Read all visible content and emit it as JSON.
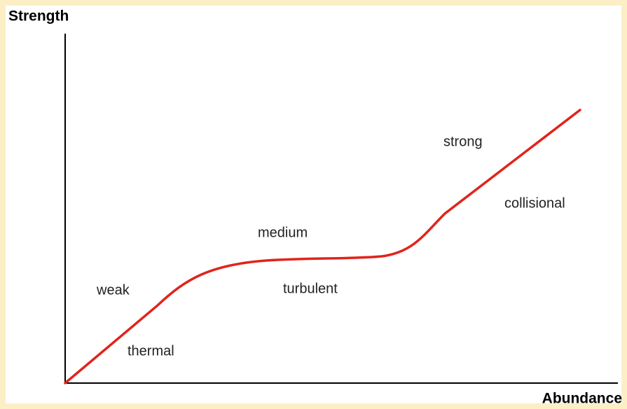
{
  "axes": {
    "y_label": "Strength",
    "x_label": "Abundance"
  },
  "regions": [
    {
      "upper": "weak",
      "lower": "thermal"
    },
    {
      "upper": "medium",
      "lower": "turbulent"
    },
    {
      "upper": "strong",
      "lower": "collisional"
    }
  ]
}
